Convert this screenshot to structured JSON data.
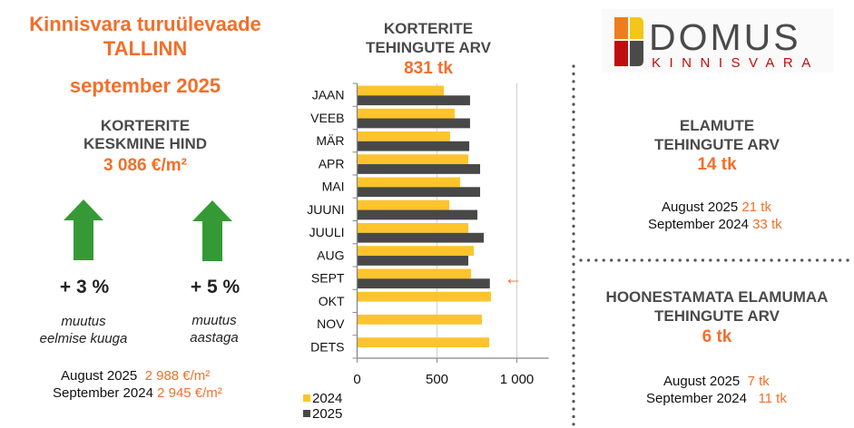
{
  "header": {
    "line1": "Kinnisvara turuülevaade",
    "line2": "TALLINN",
    "line3": "september 2025"
  },
  "apartment_price": {
    "heading_line1": "KORTERITE",
    "heading_line2": "KESKMINE HIND",
    "value": "3 086 €/m²",
    "monthly_change": {
      "value": "+ 3 %",
      "note_line1": "muutus",
      "note_line2": "eelmise kuuga",
      "direction": "up"
    },
    "yearly_change": {
      "value": "+ 5 %",
      "note_line1": "muutus",
      "note_line2": "aastaga",
      "direction": "up"
    },
    "comparisons": [
      {
        "label": "August 2025",
        "value": "2 988 €/m²"
      },
      {
        "label": "September 2024",
        "value": "2 945 €/m²"
      }
    ]
  },
  "logo": {
    "name": "DOMUS",
    "subtitle": "KINNISVARA",
    "colors": {
      "orange": "#ee7d1e",
      "yellow": "#f5c518",
      "red": "#c00d0d",
      "gray": "#4a4a4a"
    }
  },
  "houses": {
    "heading_line1": "ELAMUTE",
    "heading_line2": "TEHINGUTE ARV",
    "value": "14 tk",
    "comparisons": [
      {
        "label": "August 2025",
        "value": "21 tk"
      },
      {
        "label": "September 2024",
        "value": "33 tk"
      }
    ]
  },
  "land": {
    "heading_line1": "HOONESTAMATA ELAMUMAA",
    "heading_line2": "TEHINGUTE ARV",
    "value": "6 tk",
    "comparisons": [
      {
        "label": "August 2025",
        "value": "7 tk"
      },
      {
        "label": "September 2024",
        "value": "11 tk"
      }
    ]
  },
  "colors": {
    "accent": "#f26f2a",
    "heading": "#4a4a4a",
    "arrow_up": "#359a35",
    "series_2024": "#fec42d",
    "series_2025": "#484848"
  },
  "chart_data": {
    "type": "bar",
    "orientation": "horizontal",
    "title_line1": "KORTERITE",
    "title_line2": "TEHINGUTE ARV",
    "title_value": "831 tk",
    "categories": [
      "JAAN",
      "VEEB",
      "MÄR",
      "APR",
      "MAI",
      "JUUNI",
      "JUULI",
      "AUG",
      "SEPT",
      "OKT",
      "NOV",
      "DETS"
    ],
    "series": [
      {
        "name": "2024",
        "color": "#fec42d",
        "values": [
          543,
          611,
          582,
          696,
          645,
          577,
          696,
          730,
          713,
          838,
          781,
          827
        ]
      },
      {
        "name": "2025",
        "color": "#484848",
        "values": [
          707,
          707,
          702,
          770,
          770,
          753,
          793,
          696,
          831,
          null,
          null,
          null
        ]
      }
    ],
    "xlim": [
      0,
      1200
    ],
    "xticks": [
      0,
      500,
      1000
    ],
    "xtick_labels": [
      "0",
      "500",
      "1 000"
    ],
    "grid": true,
    "legend": "bottom-left",
    "highlight_category": "SEPT",
    "highlight_marker": "←"
  }
}
